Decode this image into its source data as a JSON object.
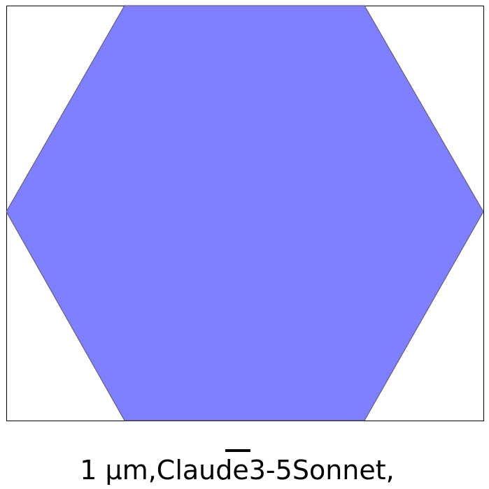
{
  "shape": {
    "type": "hexagon",
    "fill_color": "#8080ff",
    "edge_color": "#555566"
  },
  "caption": {
    "text": "1 μm,Claude3-5Sonnet,",
    "overlined_segment": "e"
  }
}
